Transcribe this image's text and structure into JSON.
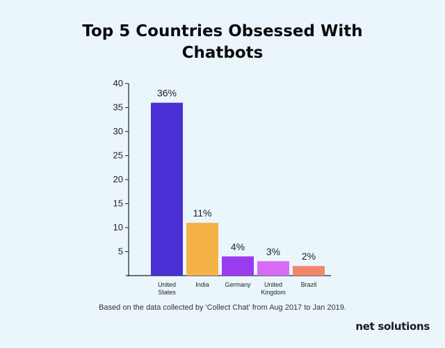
{
  "title_line1": "Top 5 Countries Obsessed With",
  "title_line2": "Chatbots",
  "source_note": "Based on the data collected by 'Collect Chat' from Aug 2017 to Jan 2019.",
  "brand": "net solutions",
  "chart_data": {
    "type": "bar",
    "title": "Top 5 Countries Obsessed With Chatbots",
    "categories": [
      [
        "United",
        "States"
      ],
      [
        "India"
      ],
      [
        "Germany"
      ],
      [
        "United",
        "Kingdom"
      ],
      [
        "Brazil"
      ]
    ],
    "values": [
      36,
      11,
      4,
      3,
      2
    ],
    "data_labels": [
      "36%",
      "11%",
      "4%",
      "3%",
      "2%"
    ],
    "colors": [
      "#4a2fd4",
      "#f4b249",
      "#9b3bf0",
      "#d66cf4",
      "#f2866c"
    ],
    "ylim": [
      0,
      40
    ],
    "yticks": [
      5,
      10,
      15,
      20,
      25,
      30,
      35,
      40
    ],
    "xlabel": "",
    "ylabel": "",
    "grid": false
  }
}
